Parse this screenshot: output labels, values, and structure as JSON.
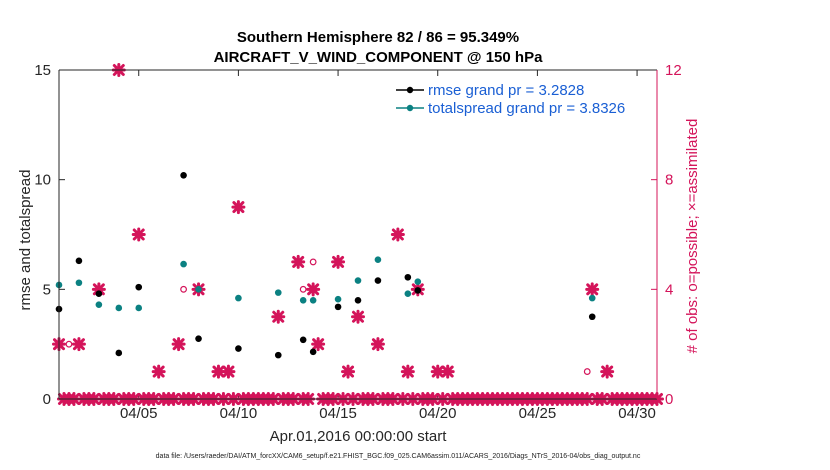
{
  "chart_data": {
    "type": "scatter",
    "title": "Southern Hemisphere 82 / 86 = 95.349%",
    "subtitle": "AIRCRAFT_V_WIND_COMPONENT @ 150 hPa",
    "xlabel": "Apr.01,2016 00:00:00 start",
    "ylabel": "rmse and totalspread",
    "ylabel_right": "# of obs: o=possible; ×=assimilated",
    "xlim": [
      1.0,
      31.0
    ],
    "ylim": [
      0,
      15
    ],
    "ylim_right": [
      0,
      12
    ],
    "x_ticks": [
      {
        "v": 5,
        "label": "04/05"
      },
      {
        "v": 10,
        "label": "04/10"
      },
      {
        "v": 15,
        "label": "04/15"
      },
      {
        "v": 20,
        "label": "04/20"
      },
      {
        "v": 25,
        "label": "04/25"
      },
      {
        "v": 30,
        "label": "04/30"
      }
    ],
    "y_ticks": [
      {
        "v": 0,
        "label": "0"
      },
      {
        "v": 5,
        "label": "5"
      },
      {
        "v": 10,
        "label": "10"
      },
      {
        "v": 15,
        "label": "15"
      }
    ],
    "y_ticks_right": [
      {
        "v": 0,
        "label": "0"
      },
      {
        "v": 4,
        "label": "4"
      },
      {
        "v": 8,
        "label": "8"
      },
      {
        "v": 12,
        "label": "12"
      }
    ],
    "legend_position": "top-right",
    "series": [
      {
        "name": "rmse grand pr = 3.2828",
        "color": "#000000",
        "points": [
          [
            1.0,
            4.1
          ],
          [
            2.0,
            6.3
          ],
          [
            3.0,
            4.8
          ],
          [
            4.0,
            2.1
          ],
          [
            5.0,
            5.1
          ],
          [
            7.25,
            10.2
          ],
          [
            8.0,
            2.75
          ],
          [
            10.0,
            2.3
          ],
          [
            12.0,
            2.0
          ],
          [
            13.25,
            2.7
          ],
          [
            13.75,
            2.15
          ],
          [
            15.0,
            4.2
          ],
          [
            16.0,
            4.5
          ],
          [
            17.0,
            5.4
          ],
          [
            18.5,
            5.55
          ],
          [
            19.0,
            4.95
          ],
          [
            27.75,
            3.75
          ]
        ]
      },
      {
        "name": "totalspread grand pr = 3.8326",
        "color": "#0b8182",
        "points": [
          [
            1.0,
            5.2
          ],
          [
            2.0,
            5.3
          ],
          [
            3.0,
            4.3
          ],
          [
            4.0,
            4.15
          ],
          [
            5.0,
            4.15
          ],
          [
            7.25,
            6.15
          ],
          [
            8.0,
            5.0
          ],
          [
            10.0,
            4.6
          ],
          [
            12.0,
            4.85
          ],
          [
            13.25,
            4.5
          ],
          [
            13.75,
            4.5
          ],
          [
            15.0,
            4.55
          ],
          [
            16.0,
            5.4
          ],
          [
            17.0,
            6.35
          ],
          [
            18.5,
            4.8
          ],
          [
            19.0,
            5.35
          ],
          [
            27.75,
            4.6
          ]
        ]
      }
    ],
    "obs_possible": {
      "color": "#d4145a",
      "points": [
        [
          1.0,
          2
        ],
        [
          1.5,
          2
        ],
        [
          2.0,
          2
        ],
        [
          3.0,
          4
        ],
        [
          4.0,
          12
        ],
        [
          5.0,
          6
        ],
        [
          6.0,
          1
        ],
        [
          7.0,
          2
        ],
        [
          7.25,
          4
        ],
        [
          8.0,
          4
        ],
        [
          9.0,
          1
        ],
        [
          9.5,
          1
        ],
        [
          10.0,
          7
        ],
        [
          12.0,
          3
        ],
        [
          13.0,
          5
        ],
        [
          13.25,
          4
        ],
        [
          13.75,
          5
        ],
        [
          14.0,
          2
        ],
        [
          15.0,
          5
        ],
        [
          15.5,
          1
        ],
        [
          16.0,
          3
        ],
        [
          17.0,
          2
        ],
        [
          18.0,
          6
        ],
        [
          18.5,
          1
        ],
        [
          19.0,
          4
        ],
        [
          20.0,
          1
        ],
        [
          20.5,
          1
        ],
        [
          27.5,
          1
        ],
        [
          27.75,
          4
        ],
        [
          28.5,
          1
        ]
      ]
    },
    "obs_assimilated": {
      "color": "#d4145a",
      "points": [
        [
          1.0,
          2
        ],
        [
          2.0,
          2
        ],
        [
          3.0,
          4
        ],
        [
          4.0,
          12
        ],
        [
          5.0,
          6
        ],
        [
          6.0,
          1
        ],
        [
          7.0,
          2
        ],
        [
          8.0,
          4
        ],
        [
          9.0,
          1
        ],
        [
          9.5,
          1
        ],
        [
          10.0,
          7
        ],
        [
          12.0,
          3
        ],
        [
          13.0,
          5
        ],
        [
          13.75,
          4
        ],
        [
          14.0,
          2
        ],
        [
          15.0,
          5
        ],
        [
          15.5,
          1
        ],
        [
          16.0,
          3
        ],
        [
          17.0,
          2
        ],
        [
          18.0,
          6
        ],
        [
          18.5,
          1
        ],
        [
          19.0,
          4
        ],
        [
          20.0,
          1
        ],
        [
          20.5,
          1
        ],
        [
          27.75,
          4
        ],
        [
          28.5,
          1
        ]
      ],
      "zero_count_x_start": 1.0,
      "zero_count_x_end": 31.0,
      "zero_count_step": 0.25
    }
  },
  "footer": "data file: /Users/raeder/DAI/ATM_forcXX/CAM6_setup/f.e21.FHIST_BGC.f09_025.CAM6assim.011/ACARS_2016/Diags_NTrS_2016-04/obs_diag_output.nc"
}
